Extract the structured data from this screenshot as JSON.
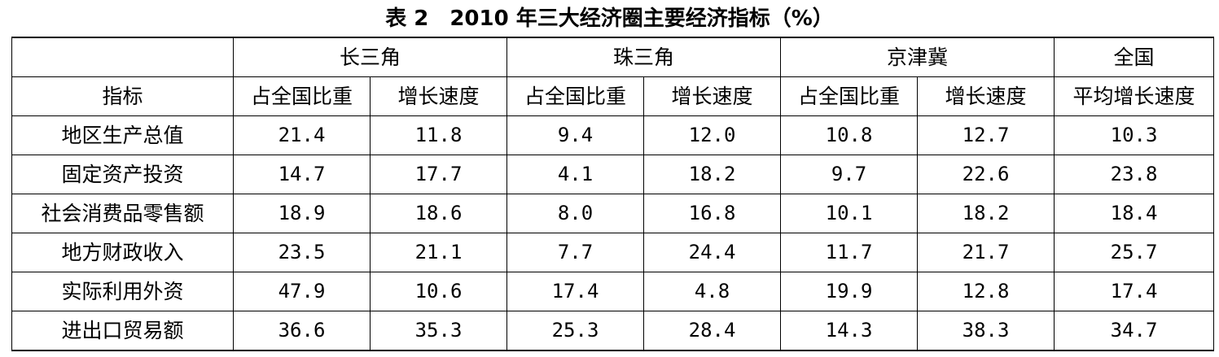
{
  "title": "表 2　2010 年三大经济圈主要经济指标（%）",
  "header": {
    "groups": [
      "长三角",
      "珠三角",
      "京津冀",
      "全国"
    ],
    "row_label": "指标",
    "sub": [
      "占全国比重",
      "增长速度",
      "占全国比重",
      "增长速度",
      "占全国比重",
      "增长速度",
      "平均增长速度"
    ]
  },
  "rows": [
    {
      "label": "地区生产总值",
      "values": [
        "21.4",
        "11.8",
        "9.4",
        "12.0",
        "10.8",
        "12.7",
        "10.3"
      ]
    },
    {
      "label": "固定资产投资",
      "values": [
        "14.7",
        "17.7",
        "4.1",
        "18.2",
        "9.7",
        "22.6",
        "23.8"
      ]
    },
    {
      "label": "社会消费品零售额",
      "values": [
        "18.9",
        "18.6",
        "8.0",
        "16.8",
        "10.1",
        "18.2",
        "18.4"
      ]
    },
    {
      "label": "地方财政收入",
      "values": [
        "23.5",
        "21.1",
        "7.7",
        "24.4",
        "11.7",
        "21.7",
        "25.7"
      ]
    },
    {
      "label": "实际利用外资",
      "values": [
        "47.9",
        "10.6",
        "17.4",
        "4.8",
        "19.9",
        "12.8",
        "17.4"
      ]
    },
    {
      "label": "进出口贸易额",
      "values": [
        "36.6",
        "35.3",
        "25.3",
        "28.4",
        "14.3",
        "38.3",
        "34.7"
      ]
    }
  ]
}
